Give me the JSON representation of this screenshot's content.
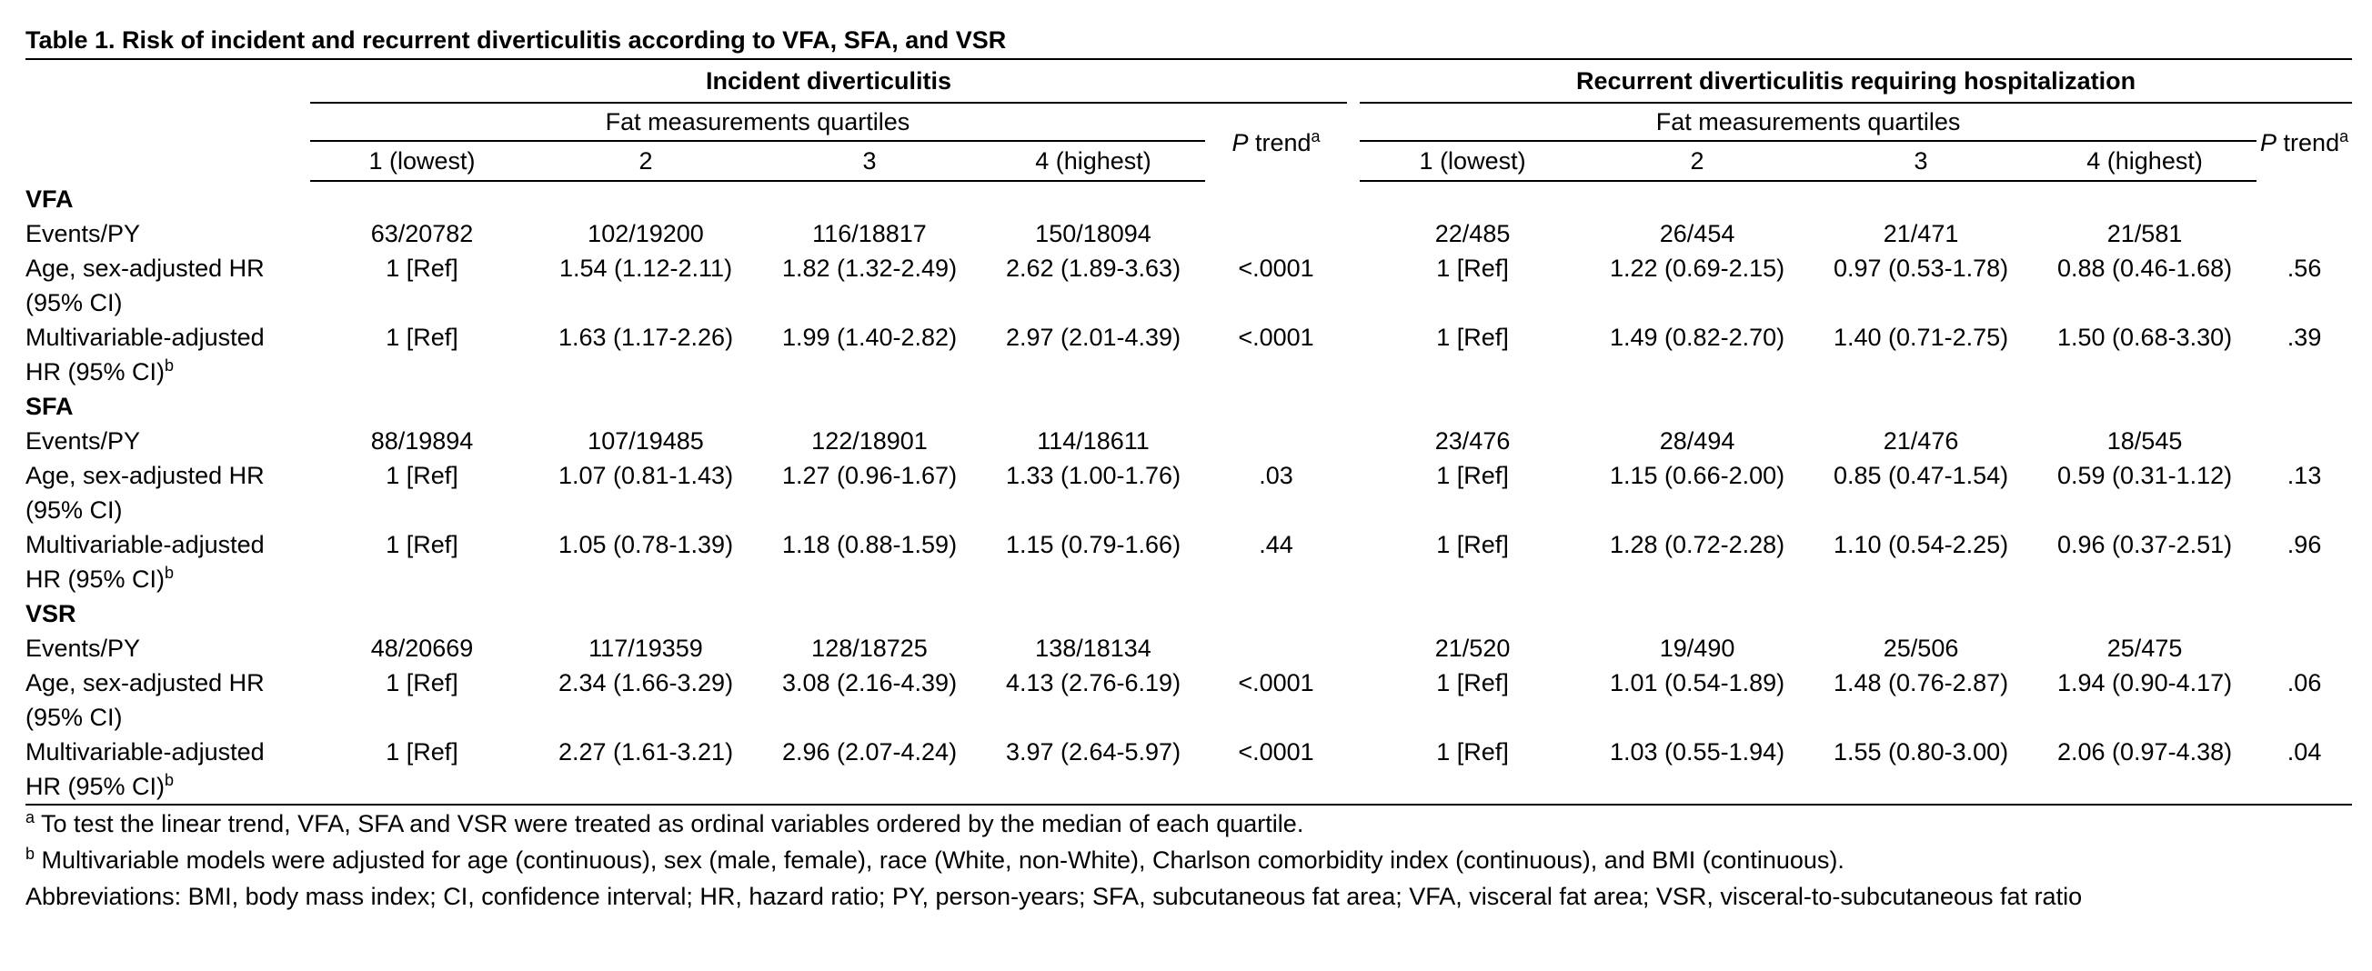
{
  "title": "Table 1. Risk of incident and recurrent diverticulitis according to VFA, SFA, and VSR",
  "groups": {
    "incident": "Incident diverticulitis",
    "recurrent": "Recurrent diverticulitis requiring hospitalization"
  },
  "subheader": "Fat measurements quartiles",
  "quartiles": [
    "1 (lowest)",
    "2",
    "3",
    "4 (highest)"
  ],
  "p_trend": {
    "p": "P",
    "word": " trend",
    "sup": "a"
  },
  "row_labels": {
    "events": "Events/PY",
    "age_line1": "Age, sex-adjusted HR",
    "age_line2": "(95% CI)",
    "multi_line1": "Multivariable-adjusted",
    "multi_line2": "HR (95% CI)",
    "multi_sup": "b"
  },
  "sections": [
    {
      "name": "VFA",
      "events": {
        "inc": [
          "63/20782",
          "102/19200",
          "116/18817",
          "150/18094"
        ],
        "inc_p": "",
        "rec": [
          "22/485",
          "26/454",
          "21/471",
          "21/581"
        ],
        "rec_p": ""
      },
      "age": {
        "inc": [
          "1 [Ref]",
          "1.54 (1.12-2.11)",
          "1.82 (1.32-2.49)",
          "2.62 (1.89-3.63)"
        ],
        "inc_p": "<.0001",
        "rec": [
          "1 [Ref]",
          "1.22 (0.69-2.15)",
          "0.97 (0.53-1.78)",
          "0.88 (0.46-1.68)"
        ],
        "rec_p": ".56"
      },
      "multi": {
        "inc": [
          "1 [Ref]",
          "1.63 (1.17-2.26)",
          "1.99 (1.40-2.82)",
          "2.97 (2.01-4.39)"
        ],
        "inc_p": "<.0001",
        "rec": [
          "1 [Ref]",
          "1.49 (0.82-2.70)",
          "1.40 (0.71-2.75)",
          "1.50 (0.68-3.30)"
        ],
        "rec_p": ".39"
      }
    },
    {
      "name": "SFA",
      "events": {
        "inc": [
          "88/19894",
          "107/19485",
          "122/18901",
          "114/18611"
        ],
        "inc_p": "",
        "rec": [
          "23/476",
          "28/494",
          "21/476",
          "18/545"
        ],
        "rec_p": ""
      },
      "age": {
        "inc": [
          "1 [Ref]",
          "1.07 (0.81-1.43)",
          "1.27 (0.96-1.67)",
          "1.33 (1.00-1.76)"
        ],
        "inc_p": ".03",
        "rec": [
          "1 [Ref]",
          "1.15 (0.66-2.00)",
          "0.85 (0.47-1.54)",
          "0.59 (0.31-1.12)"
        ],
        "rec_p": ".13"
      },
      "multi": {
        "inc": [
          "1 [Ref]",
          "1.05 (0.78-1.39)",
          "1.18 (0.88-1.59)",
          "1.15 (0.79-1.66)"
        ],
        "inc_p": ".44",
        "rec": [
          "1 [Ref]",
          "1.28 (0.72-2.28)",
          "1.10 (0.54-2.25)",
          "0.96 (0.37-2.51)"
        ],
        "rec_p": ".96"
      }
    },
    {
      "name": "VSR",
      "events": {
        "inc": [
          "48/20669",
          "117/19359",
          "128/18725",
          "138/18134"
        ],
        "inc_p": "",
        "rec": [
          "21/520",
          "19/490",
          "25/506",
          "25/475"
        ],
        "rec_p": ""
      },
      "age": {
        "inc": [
          "1 [Ref]",
          "2.34 (1.66-3.29)",
          "3.08 (2.16-4.39)",
          "4.13 (2.76-6.19)"
        ],
        "inc_p": "<.0001",
        "rec": [
          "1 [Ref]",
          "1.01 (0.54-1.89)",
          "1.48 (0.76-2.87)",
          "1.94 (0.90-4.17)"
        ],
        "rec_p": ".06"
      },
      "multi": {
        "inc": [
          "1 [Ref]",
          "2.27 (1.61-3.21)",
          "2.96 (2.07-4.24)",
          "3.97 (2.64-5.97)"
        ],
        "inc_p": "<.0001",
        "rec": [
          "1 [Ref]",
          "1.03 (0.55-1.94)",
          "1.55 (0.80-3.00)",
          "2.06 (0.97-4.38)"
        ],
        "rec_p": ".04"
      }
    }
  ],
  "footnotes": [
    {
      "sup": "a",
      "text": " To test the linear trend, VFA, SFA and VSR were treated as ordinal variables ordered by the median of each quartile."
    },
    {
      "sup": "b",
      "text": "  Multivariable models were adjusted for age (continuous), sex (male, female), race (White, non-White), Charlson comorbidity index (continuous), and BMI (continuous)."
    }
  ],
  "abbreviations": "Abbreviations: BMI, body mass index; CI, confidence interval; HR, hazard ratio; PY, person-years; SFA, subcutaneous fat area; VFA, visceral fat area; VSR, visceral-to-subcutaneous fat ratio"
}
